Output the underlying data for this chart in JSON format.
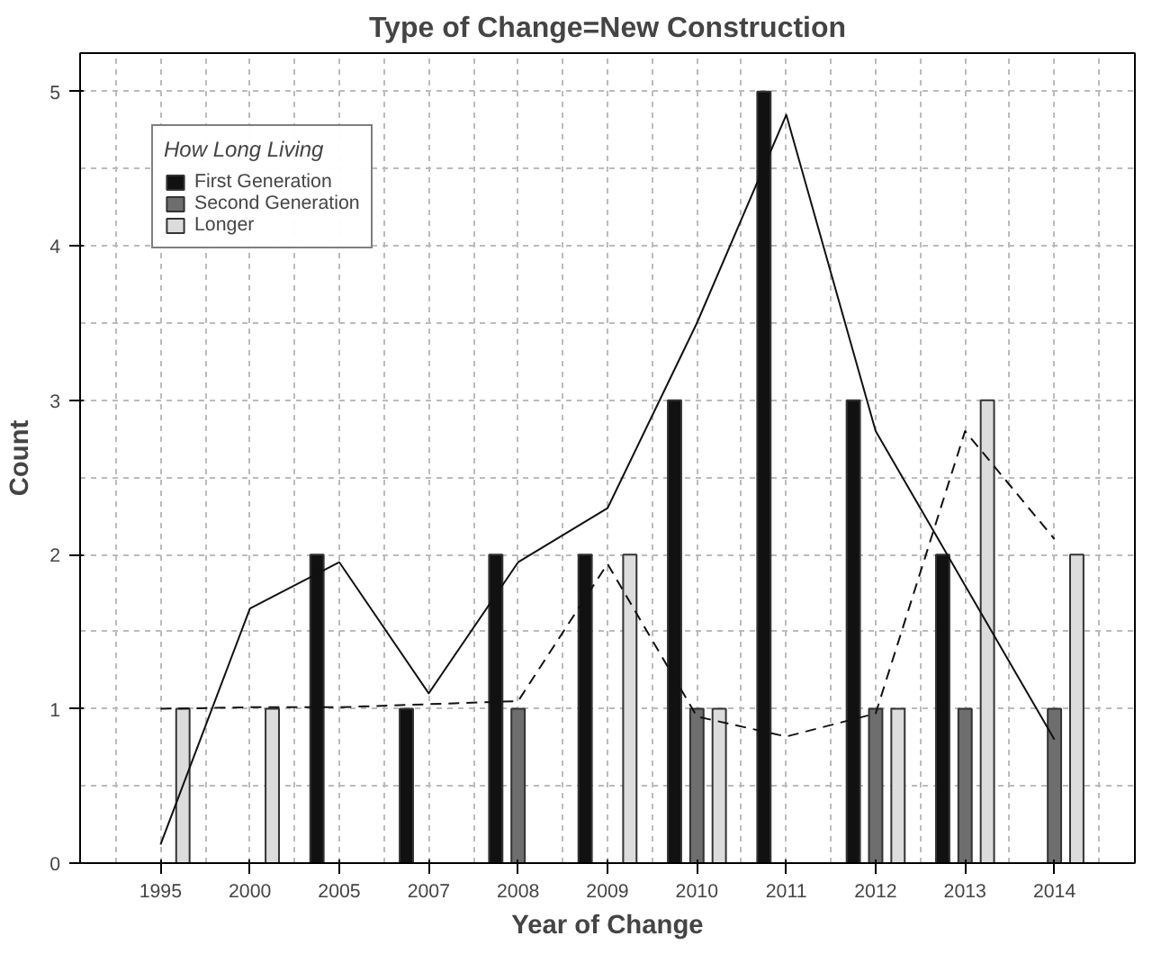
{
  "chart_data": {
    "type": "bar",
    "title": "Type of Change=New Construction",
    "xlabel": "Year of Change",
    "ylabel": "Count",
    "legend_title": "How Long Living",
    "categories": [
      "1995",
      "2000",
      "2005",
      "2007",
      "2008",
      "2009",
      "2010",
      "2011",
      "2012",
      "2013",
      "2014"
    ],
    "series": [
      {
        "name": "First Generation",
        "color": "#111111",
        "values": [
          null,
          null,
          2,
          1,
          2,
          2,
          3,
          5,
          3,
          2,
          null
        ]
      },
      {
        "name": "Second Generation",
        "color": "#6e6e6e",
        "values": [
          null,
          null,
          null,
          null,
          1,
          null,
          1,
          null,
          1,
          1,
          1
        ]
      },
      {
        "name": "Longer",
        "color": "#dcdcdc",
        "values": [
          1,
          1,
          null,
          null,
          null,
          2,
          1,
          null,
          1,
          3,
          2
        ]
      },
      {
        "type": "line",
        "color": "#111111",
        "line_style": "solid",
        "values": [
          0.12,
          1.65,
          1.95,
          1.1,
          1.95,
          2.3,
          3.5,
          4.85,
          2.8,
          1.8,
          0.8
        ]
      },
      {
        "type": "line",
        "color": "#111111",
        "line_style": "dashed",
        "values": [
          1.0,
          1.01,
          1.01,
          1.03,
          1.05,
          1.94,
          0.95,
          0.82,
          0.97,
          2.8,
          2.1
        ]
      }
    ],
    "ylim": [
      0,
      5.25
    ],
    "yticks": [
      0,
      1,
      2,
      3,
      4,
      5
    ],
    "grid": true,
    "legend": "top left"
  }
}
